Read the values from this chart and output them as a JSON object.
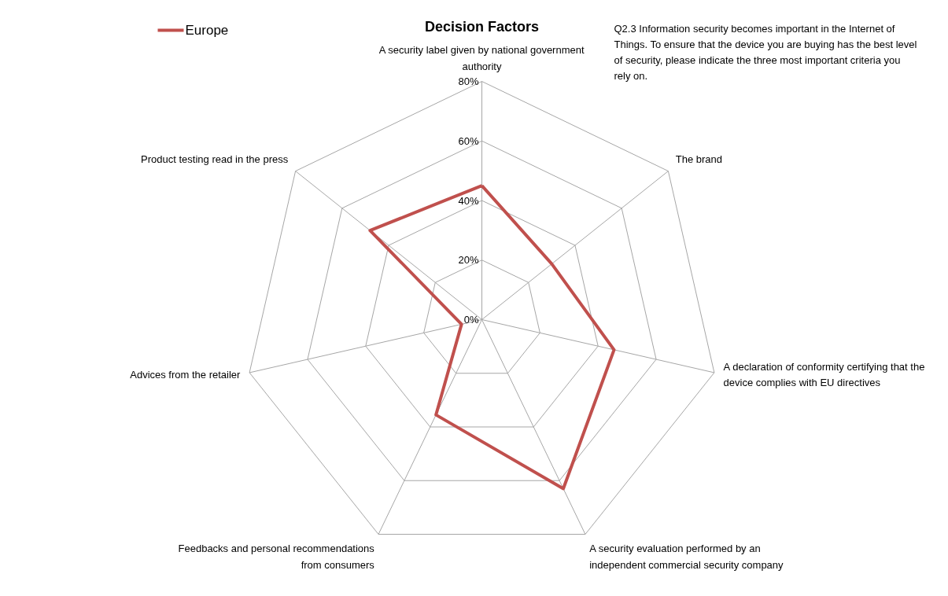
{
  "chart_data": {
    "type": "radar",
    "title": "Decision Factors",
    "categories": [
      "A security label given by national government\nauthority",
      "The brand",
      "A declaration of conformity certifying that the\ndevice complies with EU directives",
      "A security evaluation performed by an\nindependent commercial security company",
      "Feedbacks and personal recommendations\nfrom consumers",
      "Advices from the retailer",
      "Product testing read in the press"
    ],
    "series": [
      {
        "name": "Europe",
        "color": "#c0504d",
        "values": [
          45,
          30,
          45.5,
          63,
          35.5,
          7,
          48
        ]
      }
    ],
    "ylim": [
      0,
      80
    ],
    "yticks": [
      {
        "value": 0,
        "label": "0%"
      },
      {
        "value": 20,
        "label": "20%"
      },
      {
        "value": 40,
        "label": "40%"
      },
      {
        "value": 60,
        "label": "60%"
      },
      {
        "value": 80,
        "label": "80%"
      }
    ],
    "grid": true,
    "legend": "top left",
    "marker": "none",
    "line_style": "solid",
    "annotations": [
      "Q2.3 Information security becomes important in the Internet of\nThings. To ensure that the device you are buying has the best level\nof security, please indicate the three most important criteria you\nrely on."
    ]
  }
}
